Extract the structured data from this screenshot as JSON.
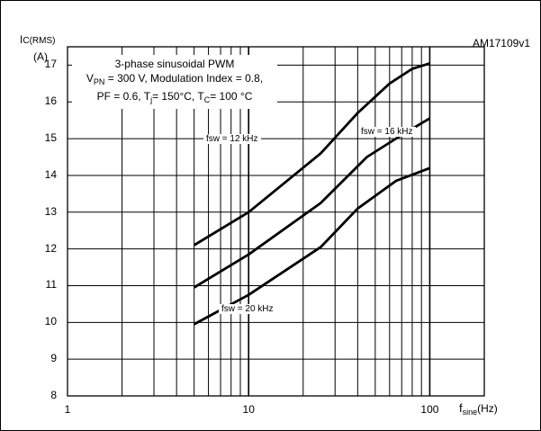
{
  "figure_id": "AM17109v1",
  "chart_data": {
    "type": "line",
    "ylabel_main": "I",
    "ylabel_sub": "C(RMS)",
    "yunit": "(A)",
    "xlabel_main": "f",
    "xlabel_sub": "sine",
    "xunit": "(Hz)",
    "x_scale": "log",
    "xlim": [
      1,
      200
    ],
    "ylim": [
      8,
      17.5
    ],
    "x_ticks": [
      1,
      10,
      100
    ],
    "x_tick_labels": [
      "1",
      "10",
      "100"
    ],
    "y_ticks": [
      8,
      9,
      10,
      11,
      12,
      13,
      14,
      15,
      16,
      17
    ],
    "y_tick_labels": [
      "8",
      "9",
      "10",
      "11",
      "12",
      "13",
      "14",
      "15",
      "16",
      "17"
    ],
    "grid": true,
    "annotation": {
      "line1": "3-phase sinusoidal PWM",
      "line2_a": "V",
      "line2_sub": "PN",
      "line2_b": " = 300 V, Modulation Index = 0.8,",
      "line3_a": "PF = 0.6, T",
      "line3_sub1": "j",
      "line3_b": "= 150°C, T",
      "line3_sub2": "C",
      "line3_c": "= 100 °C"
    },
    "series": [
      {
        "name": "fsw = 12 kHz",
        "color": "#000000",
        "x": [
          5,
          10,
          25,
          40,
          60,
          80,
          100
        ],
        "y": [
          12.1,
          13.0,
          14.6,
          15.7,
          16.5,
          16.9,
          17.05
        ]
      },
      {
        "name": "fsw = 16 kHz",
        "color": "#000000",
        "x": [
          5,
          10,
          25,
          45,
          70,
          100
        ],
        "y": [
          10.95,
          11.85,
          13.25,
          14.5,
          15.1,
          15.55
        ]
      },
      {
        "name": "fsw = 20 kHz",
        "color": "#000000",
        "x": [
          5,
          10,
          25,
          40,
          65,
          100
        ],
        "y": [
          9.95,
          10.75,
          12.05,
          13.1,
          13.85,
          14.2
        ]
      }
    ]
  }
}
